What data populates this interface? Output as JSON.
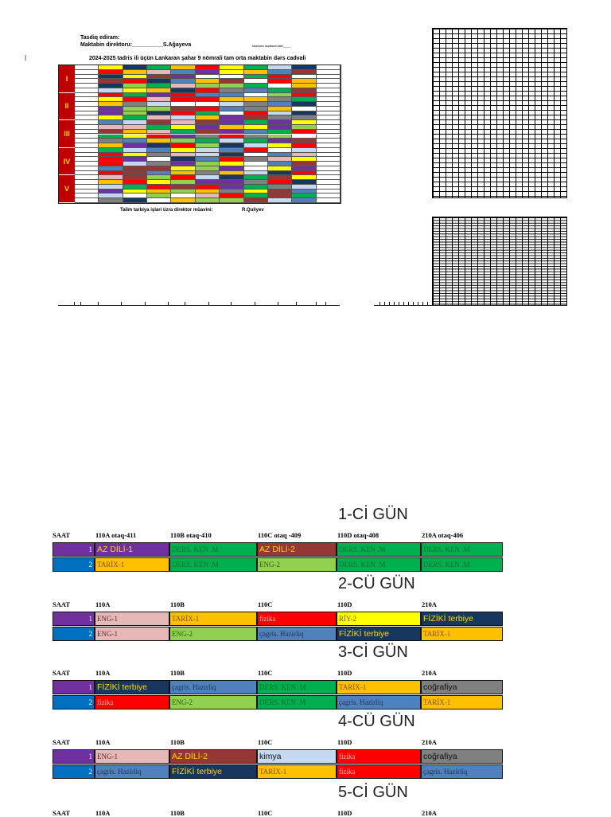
{
  "header": {
    "approve": "Tasdiq ediram:",
    "director": "Maktabin direktoru:__________S.Ağayeva",
    "small_note": "Nazirlərin təqdilaləri sahil_____",
    "title": "2024-2025 tadris ili üçün Lankaran şahar 9 nömrali tam orta maktabin dərs cadvali",
    "footer": "Talim tarbiya işlari üzra direktor müavini:",
    "footer_name": "R.Quliyev",
    "left_mark": "|"
  },
  "mini_days": [
    "I",
    "II",
    "III",
    "IV",
    "V"
  ],
  "columns": {
    "saat": "SAAT",
    "first": [
      "110A    otaq-411",
      "110B otaq-410",
      "110C otaq -409",
      "110D otaq-408",
      "210A      otaq-406"
    ],
    "rest": [
      "110A",
      "110B",
      "110C",
      "110D",
      "210A"
    ]
  },
  "days": [
    {
      "title": "1-Cİ GÜN",
      "rows": [
        {
          "num": "1",
          "cells": [
            {
              "text": "AZ DİLİ-1",
              "bg": "#7030a0",
              "fg": "#ffd700",
              "serif": false
            },
            {
              "text": "DERS. KEN .M",
              "bg": "#00b050",
              "fg": "#0a6b2a",
              "serif": true
            },
            {
              "text": "AZ DİLİ-2",
              "bg": "#953735",
              "fg": "#ffd700",
              "serif": false
            },
            {
              "text": "DERS. KEN .M",
              "bg": "#00b050",
              "fg": "#0a6b2a",
              "serif": true
            },
            {
              "text": "DERS. KEN .M",
              "bg": "#00b050",
              "fg": "#0a6b2a",
              "serif": true
            }
          ]
        },
        {
          "num": "2",
          "cells": [
            {
              "text": "TARİX-1",
              "bg": "#ffc000",
              "fg": "#7f4f00",
              "serif": true
            },
            {
              "text": "DERS. KEN .M",
              "bg": "#00b050",
              "fg": "#0a6b2a",
              "serif": true
            },
            {
              "text": "ENG-2",
              "bg": "#92d050",
              "fg": "#2e5a10",
              "serif": true
            },
            {
              "text": "DERS. KEN .M",
              "bg": "#00b050",
              "fg": "#0a6b2a",
              "serif": true
            },
            {
              "text": "DERS. KEN .M",
              "bg": "#00b050",
              "fg": "#0a6b2a",
              "serif": true
            }
          ]
        }
      ]
    },
    {
      "title": "2-CÜ GÜN",
      "rows": [
        {
          "num": "1",
          "cells": [
            {
              "text": "ENG-1",
              "bg": "#e6b8b7",
              "fg": "#5a2a2a",
              "serif": true
            },
            {
              "text": "TARİX-1",
              "bg": "#ffc000",
              "fg": "#7f4f00",
              "serif": true
            },
            {
              "text": "fizika",
              "bg": "#ff0000",
              "fg": "#ffc0c0",
              "serif": true
            },
            {
              "text": "RİY-2",
              "bg": "#ffff00",
              "fg": "#7f4f00",
              "serif": true
            },
            {
              "text": "FİZİKİ terbiye",
              "bg": "#17375e",
              "fg": "#ffd700",
              "serif": false
            }
          ]
        },
        {
          "num": "2",
          "cells": [
            {
              "text": "ENG-1",
              "bg": "#e6b8b7",
              "fg": "#5a2a2a",
              "serif": true
            },
            {
              "text": "ENG-2",
              "bg": "#92d050",
              "fg": "#2e5a10",
              "serif": true
            },
            {
              "text": "çagris. Hazirliq",
              "bg": "#4f81bd",
              "fg": "#1f3050",
              "serif": true
            },
            {
              "text": "FİZİKİ terbiye",
              "bg": "#17375e",
              "fg": "#ffd700",
              "serif": false
            },
            {
              "text": "TARİX-1",
              "bg": "#ffc000",
              "fg": "#7f4f00",
              "serif": true
            }
          ]
        }
      ]
    },
    {
      "title": "3-Cİ GÜN",
      "rows": [
        {
          "num": "1",
          "cells": [
            {
              "text": "FİZİKİ terbiye",
              "bg": "#17375e",
              "fg": "#ffd700",
              "serif": false
            },
            {
              "text": "çagris. Hazirliq",
              "bg": "#4f81bd",
              "fg": "#1f3050",
              "serif": true
            },
            {
              "text": "DERS. KEN .M",
              "bg": "#00b050",
              "fg": "#0a6b2a",
              "serif": true
            },
            {
              "text": "TARİX-1",
              "bg": "#ffc000",
              "fg": "#7f4f00",
              "serif": true
            },
            {
              "text": "coğrafiya",
              "bg": "#808080",
              "fg": "#111111",
              "serif": false
            }
          ]
        },
        {
          "num": "2",
          "cells": [
            {
              "text": "fizika",
              "bg": "#ff0000",
              "fg": "#ffc0c0",
              "serif": true
            },
            {
              "text": "ENG-2",
              "bg": "#92d050",
              "fg": "#2e5a10",
              "serif": true
            },
            {
              "text": "DERS. KEN .M",
              "bg": "#00b050",
              "fg": "#0a6b2a",
              "serif": true
            },
            {
              "text": "çagris. Hazirliq",
              "bg": "#4f81bd",
              "fg": "#1f3050",
              "serif": true
            },
            {
              "text": "TARİX-1",
              "bg": "#ffc000",
              "fg": "#7f4f00",
              "serif": true
            }
          ]
        }
      ]
    },
    {
      "title": "4-CÜ GÜN",
      "rows": [
        {
          "num": "1",
          "cells": [
            {
              "text": "ENG-1",
              "bg": "#e6b8b7",
              "fg": "#5a2a2a",
              "serif": true
            },
            {
              "text": "AZ DİLİ-2",
              "bg": "#953735",
              "fg": "#ffd700",
              "serif": false
            },
            {
              "text": "kimya",
              "bg": "#c5d9f1",
              "fg": "#111111",
              "serif": false
            },
            {
              "text": "fizika",
              "bg": "#ff0000",
              "fg": "#ffc0c0",
              "serif": true
            },
            {
              "text": "coğrafiya",
              "bg": "#808080",
              "fg": "#111111",
              "serif": false
            }
          ]
        },
        {
          "num": "2",
          "cells": [
            {
              "text": "çagris. Hazirliq",
              "bg": "#4f81bd",
              "fg": "#1f3050",
              "serif": true
            },
            {
              "text": "FİZİKİ terbiye",
              "bg": "#17375e",
              "fg": "#ffd700",
              "serif": false
            },
            {
              "text": "TARİX-1",
              "bg": "#ffc000",
              "fg": "#7f4f00",
              "serif": true
            },
            {
              "text": "fizika",
              "bg": "#ff0000",
              "fg": "#ffc0c0",
              "serif": true
            },
            {
              "text": "çagris. Hazirliq",
              "bg": "#4f81bd",
              "fg": "#1f3050",
              "serif": true
            }
          ]
        }
      ]
    },
    {
      "title": "5-Cİ GÜN",
      "rows": []
    }
  ],
  "colors": {
    "num1_bg": "#7030a0",
    "num2_bg": "#0070c0",
    "day_block": "#c00000",
    "day_text": "#ffd700"
  },
  "mini_palette": [
    "#7030a0",
    "#00b050",
    "#953735",
    "#ffc000",
    "#92d050",
    "#ff0000",
    "#ffff00",
    "#17375e",
    "#4f81bd",
    "#808080",
    "#e6b8b7",
    "#c5d9f1",
    "#ffffff"
  ]
}
